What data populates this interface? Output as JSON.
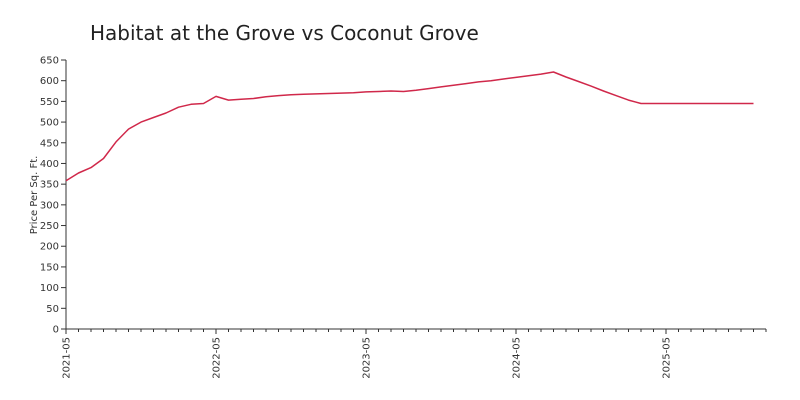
{
  "chart_data": {
    "type": "line",
    "title": "Habitat at the Grove vs Coconut Grove",
    "xlabel": "",
    "ylabel": "Price Per Sq. Ft.",
    "ylim": [
      0,
      650
    ],
    "yticks": [
      0,
      50,
      100,
      150,
      200,
      250,
      300,
      350,
      400,
      450,
      500,
      550,
      600,
      650
    ],
    "xlim": [
      "2021-05",
      "2026-01"
    ],
    "xtick_labels": [
      "2021-05",
      "2022-05",
      "2023-05",
      "2024-05",
      "2025-05"
    ],
    "grid": false,
    "series": [
      {
        "color": "#d0284a",
        "x": [
          "2021-05",
          "2021-06",
          "2021-07",
          "2021-08",
          "2021-09",
          "2021-10",
          "2021-11",
          "2021-12",
          "2022-01",
          "2022-02",
          "2022-03",
          "2022-04",
          "2022-05",
          "2022-06",
          "2022-07",
          "2022-08",
          "2022-09",
          "2022-10",
          "2022-11",
          "2022-12",
          "2023-01",
          "2023-02",
          "2023-03",
          "2023-04",
          "2023-05",
          "2023-06",
          "2023-07",
          "2023-08",
          "2023-09",
          "2023-10",
          "2023-11",
          "2023-12",
          "2024-01",
          "2024-02",
          "2024-03",
          "2024-04",
          "2024-05",
          "2024-06",
          "2024-07",
          "2024-08",
          "2024-09",
          "2024-10",
          "2024-11",
          "2024-12",
          "2025-01",
          "2025-02",
          "2025-03",
          "2025-04",
          "2025-05",
          "2025-06",
          "2025-07",
          "2025-08",
          "2025-09",
          "2025-10",
          "2025-11",
          "2025-12"
        ],
        "values": [
          358,
          377,
          390,
          412,
          452,
          483,
          500,
          511,
          522,
          536,
          543,
          545,
          562,
          553,
          555,
          557,
          561,
          564,
          566,
          567,
          568,
          569,
          570,
          571,
          573,
          574,
          575,
          574,
          577,
          581,
          585,
          589,
          593,
          597,
          600,
          604,
          608,
          612,
          616,
          621,
          609,
          598,
          587,
          575,
          564,
          553,
          545,
          545,
          545,
          545,
          545,
          545,
          545,
          545,
          545,
          545
        ]
      }
    ]
  }
}
